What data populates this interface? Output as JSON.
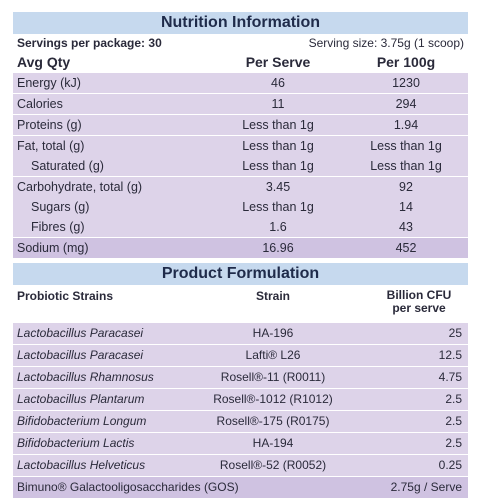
{
  "nutrition": {
    "title": "Nutrition Information",
    "servings_label": "Servings per package: 30",
    "serving_size": "Serving size: 3.75g (1 scoop)",
    "headers": [
      "Avg Qty",
      "Per Serve",
      "Per 100g"
    ],
    "rows": [
      {
        "label": "Energy (kJ)",
        "serve": "46",
        "per100": "1230"
      },
      {
        "label": "Calories",
        "serve": "11",
        "per100": "294"
      },
      {
        "label": "Proteins (g)",
        "serve": "Less than 1g",
        "per100": "1.94"
      },
      {
        "label": "Fat, total (g)",
        "serve": "Less than 1g",
        "per100": "Less than 1g"
      },
      {
        "label": "Saturated (g)",
        "serve": "Less than 1g",
        "per100": "Less than 1g"
      },
      {
        "label": "Carbohydrate, total (g)",
        "serve": "3.45",
        "per100": "92"
      },
      {
        "label": "Sugars (g)",
        "serve": "Less than 1g",
        "per100": "14"
      },
      {
        "label": "Fibres (g)",
        "serve": "1.6",
        "per100": "43"
      },
      {
        "label": "Sodium (mg)",
        "serve": "16.96",
        "per100": "452"
      }
    ]
  },
  "formulation": {
    "title": "Product Formulation",
    "headers": {
      "strains": "Probiotic Strains",
      "strain": "Strain",
      "cfu_line1": "Billion CFU",
      "cfu_line2": "per serve"
    },
    "rows": [
      {
        "name": "Lactobacillus Paracasei",
        "strain": "HA-196",
        "cfu": "25"
      },
      {
        "name": "Lactobacillus Paracasei",
        "strain": "Lafti® L26",
        "cfu": "12.5"
      },
      {
        "name": "Lactobacillus Rhamnosus",
        "strain": "Rosell®-11 (R0011)",
        "cfu": "4.75"
      },
      {
        "name": "Lactobacillus Plantarum",
        "strain": "Rosell®-1012 (R1012)",
        "cfu": "2.5"
      },
      {
        "name": "Bifidobacterium Longum",
        "strain": "Rosell®-175 (R0175)",
        "cfu": "2.5"
      },
      {
        "name": "Bifidobacterium Lactis",
        "strain": "HA-194",
        "cfu": "2.5"
      },
      {
        "name": "Lactobacillus Helveticus",
        "strain": "Rosell®-52 (R0052)",
        "cfu": "0.25"
      }
    ],
    "gos": {
      "name": "Bimuno® Galactooligosaccharides (GOS)",
      "value": "2.75g / Serve"
    }
  }
}
